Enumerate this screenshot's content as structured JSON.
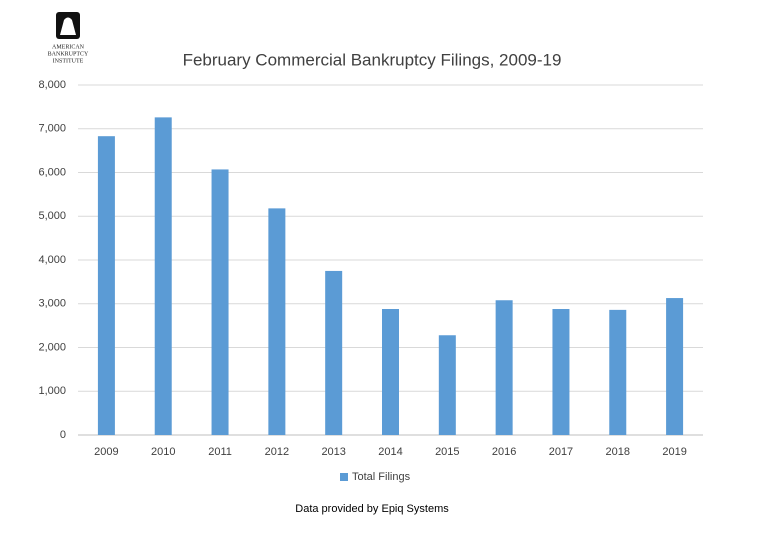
{
  "chart_data": {
    "type": "bar",
    "title": "February Commercial Bankruptcy Filings, 2009-19",
    "logo_text": [
      "AMERICAN",
      "BANKRUPTCY",
      "INSTITUTE"
    ],
    "note": "Data provided by Epiq Systems",
    "categories": [
      "2009",
      "2010",
      "2011",
      "2012",
      "2013",
      "2014",
      "2015",
      "2016",
      "2017",
      "2018",
      "2019"
    ],
    "series": [
      {
        "name": "Total Filings",
        "color": "#5b9bd5",
        "values": [
          6830,
          7260,
          6070,
          5180,
          3750,
          2880,
          2280,
          3080,
          2880,
          2860,
          3130
        ]
      }
    ],
    "ylim": [
      0,
      8000
    ],
    "yticks": [
      0,
      {
        "value": 1000,
        "label": "1,000"
      },
      {
        "value": 2000,
        "label": "2,000"
      },
      {
        "value": 3000,
        "label": "3,000"
      },
      {
        "value": 4000,
        "label": "4,000"
      },
      {
        "value": 5000,
        "label": "5,000"
      },
      {
        "value": 6000,
        "label": "6,000"
      },
      {
        "value": 7000,
        "label": "7,000"
      },
      {
        "value": 8000,
        "label": "8,000"
      }
    ],
    "grid": true,
    "legend": "bottom"
  }
}
